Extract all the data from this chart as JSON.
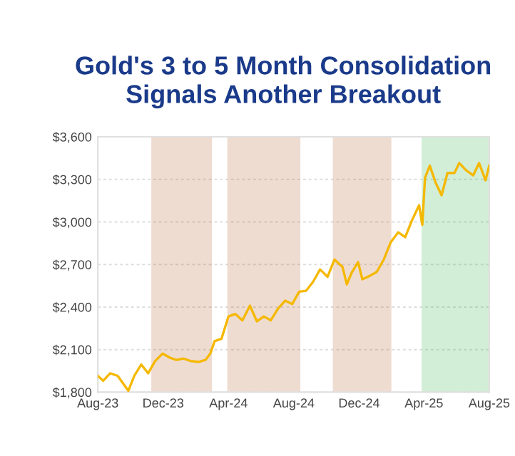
{
  "chart_data": {
    "type": "line",
    "title": "Gold's 3 to 5 Month Consolidation\nSignals Another Breakout",
    "x": [
      "2023-08-01",
      "2023-08-11",
      "2023-08-24",
      "2023-09-07",
      "2023-09-27",
      "2023-10-08",
      "2023-10-21",
      "2023-11-03",
      "2023-11-16",
      "2023-11-30",
      "2023-12-13",
      "2023-12-26",
      "2024-01-08",
      "2024-01-21",
      "2024-02-05",
      "2024-02-18",
      "2024-02-27",
      "2024-03-06",
      "2024-03-19",
      "2024-04-01",
      "2024-04-14",
      "2024-04-27",
      "2024-05-11",
      "2024-05-24",
      "2024-06-06",
      "2024-06-19",
      "2024-07-02",
      "2024-07-16",
      "2024-07-29",
      "2024-08-11",
      "2024-08-24",
      "2024-09-06",
      "2024-09-19",
      "2024-10-03",
      "2024-10-16",
      "2024-10-31",
      "2024-11-08",
      "2024-11-17",
      "2024-11-29",
      "2024-12-07",
      "2024-12-21",
      "2025-01-03",
      "2025-01-16",
      "2025-01-29",
      "2025-02-12",
      "2025-02-25",
      "2025-03-10",
      "2025-03-23",
      "2025-03-29",
      "2025-04-03",
      "2025-04-12",
      "2025-04-23",
      "2025-05-04",
      "2025-05-15",
      "2025-05-28",
      "2025-06-06",
      "2025-06-19",
      "2025-07-02",
      "2025-07-13",
      "2025-07-25",
      "2025-08-01"
    ],
    "series": [
      {
        "color": "#f5b800",
        "values": [
          1915,
          1880,
          1933,
          1915,
          1810,
          1915,
          1995,
          1933,
          2020,
          2072,
          2044,
          2027,
          2037,
          2020,
          2013,
          2027,
          2072,
          2159,
          2177,
          2334,
          2351,
          2306,
          2410,
          2299,
          2334,
          2306,
          2386,
          2445,
          2421,
          2508,
          2515,
          2578,
          2665,
          2613,
          2735,
          2682,
          2560,
          2641,
          2717,
          2595,
          2620,
          2648,
          2735,
          2857,
          2927,
          2892,
          3014,
          3118,
          2979,
          3310,
          3397,
          3275,
          3188,
          3345,
          3345,
          3415,
          3363,
          3328,
          3415,
          3293,
          3397
        ]
      }
    ],
    "xlim": [
      "2023-08-01",
      "2025-08-01"
    ],
    "xticks": [
      {
        "value": "2023-08-01",
        "label": "Aug-23"
      },
      {
        "value": "2023-12-01",
        "label": "Dec-23"
      },
      {
        "value": "2024-04-01",
        "label": "Apr-24"
      },
      {
        "value": "2024-08-01",
        "label": "Aug-24"
      },
      {
        "value": "2024-12-01",
        "label": "Dec-24"
      },
      {
        "value": "2025-04-01",
        "label": "Apr-25"
      },
      {
        "value": "2025-08-01",
        "label": "Aug-25"
      }
    ],
    "ylim": [
      1800,
      3600
    ],
    "yticks": [
      {
        "value": 1800,
        "label": "$1,800"
      },
      {
        "value": 2100,
        "label": "$2,100"
      },
      {
        "value": 2400,
        "label": "$2,400"
      },
      {
        "value": 2700,
        "label": "$2,700"
      },
      {
        "value": 3000,
        "label": "$3,000"
      },
      {
        "value": 3300,
        "label": "$3,300"
      },
      {
        "value": 3600,
        "label": "$3,600"
      }
    ],
    "grid": "y",
    "bands": [
      {
        "axis": "x",
        "from": "2023-11-11",
        "to": "2024-02-28",
        "color": "#c0764a"
      },
      {
        "axis": "x",
        "from": "2024-04-01",
        "to": "2024-08-11",
        "color": "#c0764a"
      },
      {
        "axis": "x",
        "from": "2024-10-15",
        "to": "2025-01-28",
        "color": "#c0764a"
      },
      {
        "axis": "x",
        "from": "2025-03-30",
        "to": "2025-08-01",
        "color": "#4cbb5e"
      }
    ]
  }
}
